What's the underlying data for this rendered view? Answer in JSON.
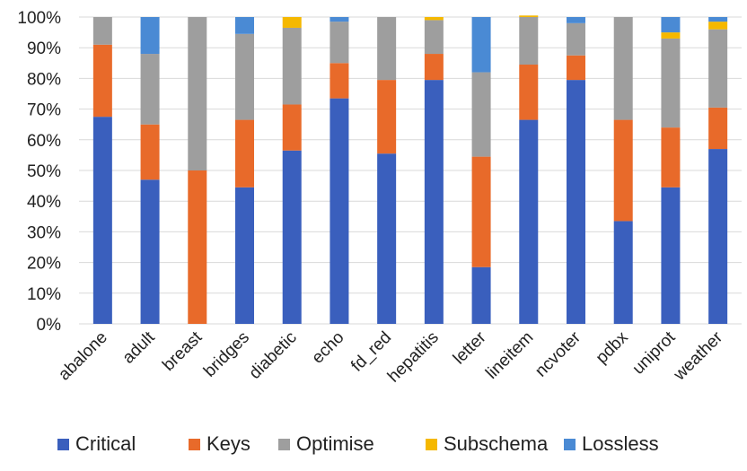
{
  "chart_data": {
    "type": "bar",
    "stacked": true,
    "categories": [
      "abalone",
      "adult",
      "breast",
      "bridges",
      "diabetic",
      "echo",
      "fd_red",
      "hepatitis",
      "letter",
      "lineitem",
      "ncvoter",
      "pdbx",
      "uniprot",
      "weather"
    ],
    "series": [
      {
        "name": "Critical",
        "color": "#3a5fbd",
        "values": [
          67.5,
          47,
          0,
          44.5,
          56.5,
          73.5,
          55.5,
          79.5,
          18.5,
          66.5,
          79.5,
          33.5,
          44.5,
          57
        ]
      },
      {
        "name": "Keys",
        "color": "#e86a2a",
        "values": [
          23.5,
          18,
          50,
          22,
          15,
          11.5,
          24,
          8.5,
          36,
          18,
          8,
          33,
          19.5,
          13.5
        ]
      },
      {
        "name": "Optimise",
        "color": "#9e9e9e",
        "values": [
          9,
          23,
          50,
          28,
          25,
          13.5,
          20.5,
          11,
          27.5,
          15.5,
          10.5,
          33.5,
          29,
          25.5
        ]
      },
      {
        "name": "Subschema",
        "color": "#f5b800",
        "values": [
          0,
          0,
          0,
          0,
          3.5,
          0,
          0,
          1,
          0,
          0.5,
          0,
          0,
          2,
          2.5
        ]
      },
      {
        "name": "Lossless",
        "color": "#4a8ad4",
        "values": [
          0,
          12,
          0,
          5.5,
          0,
          1.5,
          0,
          0,
          18,
          0,
          2,
          0,
          5,
          1.5
        ]
      }
    ],
    "yticks": [
      "0%",
      "10%",
      "20%",
      "30%",
      "40%",
      "50%",
      "60%",
      "70%",
      "80%",
      "90%",
      "100%"
    ],
    "ylim": [
      0,
      100
    ],
    "grid": true,
    "legend": "bottom"
  }
}
